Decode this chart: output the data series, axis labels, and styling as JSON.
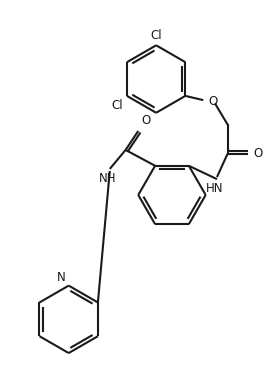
{
  "background_color": "#ffffff",
  "line_color": "#1a1a1a",
  "line_width": 1.5,
  "font_size": 8.5,
  "figsize": [
    2.67,
    3.91
  ],
  "dpi": 100,
  "labels": {
    "Cl1": "Cl",
    "Cl2": "Cl",
    "O1": "O",
    "O2": "O",
    "O3": "O",
    "HN1": "HN",
    "NH": "NH",
    "N": "N"
  }
}
